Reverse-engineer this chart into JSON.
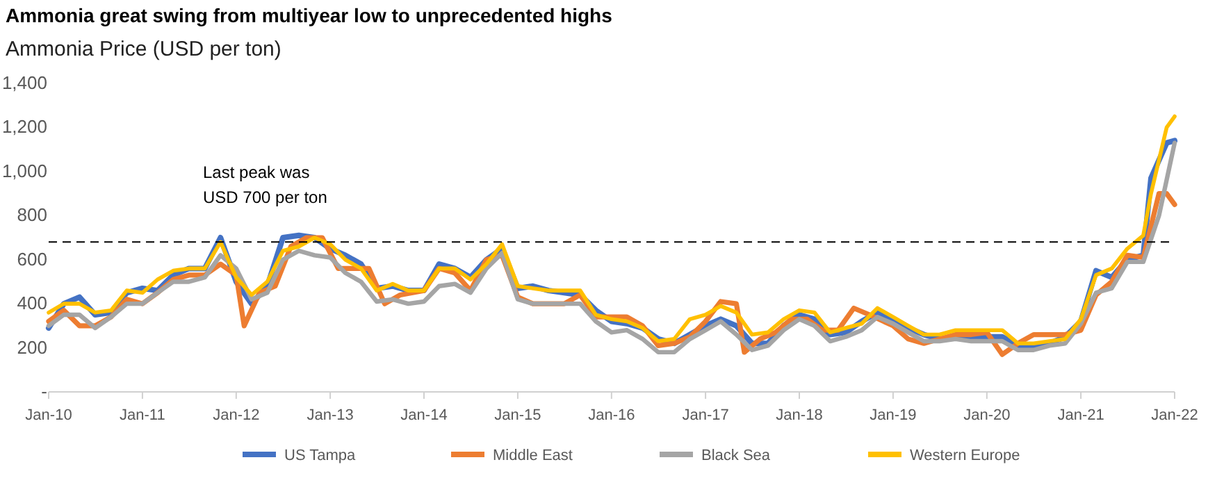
{
  "chart_data": {
    "type": "line",
    "title": "Ammonia great swing from multiyear low to unprecedented highs",
    "ylabel": "Ammonia Price (USD per ton)",
    "annotations": [
      "Last peak was\nUSD 700 per ton"
    ],
    "xlim": [
      "2010-01",
      "2022-01"
    ],
    "xticks": [
      {
        "value": "2010-01",
        "label": "Jan-10"
      },
      {
        "value": "2011-01",
        "label": "Jan-11"
      },
      {
        "value": "2012-01",
        "label": "Jan-12"
      },
      {
        "value": "2013-01",
        "label": "Jan-13"
      },
      {
        "value": "2014-01",
        "label": "Jan-14"
      },
      {
        "value": "2015-01",
        "label": "Jan-15"
      },
      {
        "value": "2016-01",
        "label": "Jan-16"
      },
      {
        "value": "2017-01",
        "label": "Jan-17"
      },
      {
        "value": "2018-01",
        "label": "Jan-18"
      },
      {
        "value": "2019-01",
        "label": "Jan-19"
      },
      {
        "value": "2020-01",
        "label": "Jan-20"
      },
      {
        "value": "2021-01",
        "label": "Jan-21"
      },
      {
        "value": "2022-01",
        "label": "Jan-22"
      }
    ],
    "ylim": [
      0,
      1400
    ],
    "yticks": [
      {
        "value": 0,
        "label": "-"
      },
      {
        "value": 200,
        "label": "200"
      },
      {
        "value": 400,
        "label": "400"
      },
      {
        "value": 600,
        "label": "600"
      },
      {
        "value": 800,
        "label": "800"
      },
      {
        "value": 1000,
        "label": "1,000"
      },
      {
        "value": 1200,
        "label": "1,200"
      },
      {
        "value": 1400,
        "label": "1,400"
      }
    ],
    "grid": false,
    "legend": "bottom",
    "marker": "none",
    "line_style": "solid",
    "ref_lines": [
      {
        "axis": "y",
        "value": 680,
        "color": "#000000",
        "line_style": "dashed"
      }
    ],
    "series": [
      {
        "name": "US Tampa",
        "color": "#4472c4",
        "x": [
          "2010-01",
          "2010-03",
          "2010-05",
          "2010-07",
          "2010-09",
          "2010-11",
          "2011-01",
          "2011-03",
          "2011-05",
          "2011-07",
          "2011-09",
          "2011-11",
          "2012-01",
          "2012-03",
          "2012-05",
          "2012-07",
          "2012-09",
          "2012-11",
          "2013-01",
          "2013-03",
          "2013-05",
          "2013-07",
          "2013-09",
          "2013-11",
          "2014-01",
          "2014-03",
          "2014-05",
          "2014-07",
          "2014-09",
          "2014-11",
          "2015-01",
          "2015-03",
          "2015-05",
          "2015-07",
          "2015-09",
          "2015-11",
          "2016-01",
          "2016-03",
          "2016-05",
          "2016-07",
          "2016-09",
          "2016-11",
          "2017-01",
          "2017-03",
          "2017-05",
          "2017-07",
          "2017-09",
          "2017-11",
          "2018-01",
          "2018-03",
          "2018-05",
          "2018-07",
          "2018-09",
          "2018-11",
          "2019-01",
          "2019-03",
          "2019-05",
          "2019-07",
          "2019-09",
          "2019-11",
          "2020-01",
          "2020-03",
          "2020-05",
          "2020-07",
          "2020-09",
          "2020-11",
          "2021-01",
          "2021-03",
          "2021-05",
          "2021-07",
          "2021-09",
          "2021-10",
          "2021-12",
          "2022-01"
        ],
        "values": [
          290,
          400,
          430,
          350,
          360,
          450,
          470,
          460,
          530,
          560,
          560,
          700,
          500,
          400,
          480,
          700,
          710,
          700,
          650,
          620,
          580,
          470,
          480,
          460,
          460,
          580,
          560,
          520,
          600,
          650,
          470,
          480,
          460,
          450,
          440,
          370,
          320,
          310,
          290,
          240,
          220,
          260,
          300,
          330,
          300,
          220,
          220,
          300,
          350,
          330,
          260,
          270,
          320,
          360,
          330,
          290,
          260,
          240,
          250,
          250,
          250,
          250,
          210,
          210,
          220,
          250,
          320,
          550,
          520,
          600,
          620,
          970,
          1130,
          1140
        ]
      },
      {
        "name": "Middle East",
        "color": "#ed7d31",
        "x": [
          "2010-01",
          "2010-03",
          "2010-05",
          "2010-07",
          "2010-09",
          "2010-11",
          "2011-01",
          "2011-03",
          "2011-05",
          "2011-07",
          "2011-09",
          "2011-11",
          "2012-01",
          "2012-02",
          "2012-04",
          "2012-06",
          "2012-08",
          "2012-10",
          "2012-12",
          "2013-02",
          "2013-04",
          "2013-06",
          "2013-08",
          "2013-10",
          "2014-01",
          "2014-03",
          "2014-05",
          "2014-07",
          "2014-09",
          "2014-11",
          "2015-01",
          "2015-03",
          "2015-05",
          "2015-07",
          "2015-09",
          "2015-11",
          "2016-01",
          "2016-03",
          "2016-05",
          "2016-07",
          "2016-09",
          "2016-11",
          "2017-01",
          "2017-03",
          "2017-05",
          "2017-06",
          "2017-08",
          "2017-10",
          "2017-12",
          "2018-02",
          "2018-04",
          "2018-06",
          "2018-08",
          "2018-10",
          "2019-01",
          "2019-03",
          "2019-05",
          "2019-07",
          "2019-09",
          "2019-11",
          "2020-01",
          "2020-03",
          "2020-05",
          "2020-07",
          "2020-09",
          "2020-11",
          "2021-01",
          "2021-03",
          "2021-05",
          "2021-07",
          "2021-09",
          "2021-11",
          "2021-12",
          "2022-01"
        ],
        "values": [
          320,
          370,
          300,
          300,
          340,
          420,
          400,
          450,
          510,
          530,
          530,
          580,
          530,
          300,
          450,
          480,
          660,
          700,
          700,
          560,
          560,
          560,
          400,
          440,
          460,
          560,
          540,
          460,
          600,
          620,
          430,
          400,
          400,
          400,
          440,
          340,
          340,
          340,
          300,
          210,
          220,
          250,
          320,
          410,
          400,
          180,
          240,
          270,
          330,
          330,
          280,
          280,
          380,
          350,
          300,
          240,
          220,
          240,
          260,
          260,
          270,
          170,
          220,
          260,
          260,
          260,
          280,
          440,
          500,
          620,
          610,
          900,
          900,
          850
        ]
      },
      {
        "name": "Black Sea",
        "color": "#a5a5a5",
        "x": [
          "2010-01",
          "2010-03",
          "2010-05",
          "2010-07",
          "2010-09",
          "2010-11",
          "2011-01",
          "2011-03",
          "2011-05",
          "2011-07",
          "2011-09",
          "2011-11",
          "2012-01",
          "2012-03",
          "2012-05",
          "2012-07",
          "2012-09",
          "2012-11",
          "2013-01",
          "2013-03",
          "2013-05",
          "2013-07",
          "2013-09",
          "2013-11",
          "2014-01",
          "2014-03",
          "2014-05",
          "2014-07",
          "2014-09",
          "2014-11",
          "2015-01",
          "2015-03",
          "2015-05",
          "2015-07",
          "2015-09",
          "2015-11",
          "2016-01",
          "2016-03",
          "2016-05",
          "2016-07",
          "2016-09",
          "2016-11",
          "2017-01",
          "2017-03",
          "2017-05",
          "2017-07",
          "2017-09",
          "2017-11",
          "2018-01",
          "2018-03",
          "2018-05",
          "2018-07",
          "2018-09",
          "2018-11",
          "2019-01",
          "2019-03",
          "2019-05",
          "2019-07",
          "2019-09",
          "2019-11",
          "2020-01",
          "2020-03",
          "2020-05",
          "2020-07",
          "2020-09",
          "2020-11",
          "2021-01",
          "2021-03",
          "2021-05",
          "2021-07",
          "2021-09",
          "2021-11",
          "2022-01"
        ],
        "values": [
          300,
          350,
          350,
          290,
          340,
          400,
          400,
          450,
          500,
          500,
          520,
          620,
          560,
          420,
          450,
          600,
          640,
          620,
          610,
          540,
          500,
          410,
          420,
          400,
          410,
          480,
          490,
          450,
          560,
          630,
          420,
          400,
          400,
          400,
          400,
          320,
          270,
          280,
          240,
          180,
          180,
          240,
          280,
          320,
          260,
          190,
          210,
          280,
          330,
          300,
          230,
          250,
          280,
          340,
          310,
          270,
          230,
          230,
          240,
          230,
          230,
          230,
          190,
          190,
          210,
          220,
          310,
          450,
          470,
          590,
          590,
          800,
          1130
        ]
      },
      {
        "name": "Western Europe",
        "color": "#ffc000",
        "x": [
          "2010-01",
          "2010-03",
          "2010-05",
          "2010-07",
          "2010-09",
          "2010-11",
          "2011-01",
          "2011-03",
          "2011-05",
          "2011-07",
          "2011-09",
          "2011-11",
          "2012-01",
          "2012-03",
          "2012-05",
          "2012-07",
          "2012-09",
          "2012-11",
          "2013-01",
          "2013-03",
          "2013-05",
          "2013-07",
          "2013-09",
          "2013-11",
          "2014-01",
          "2014-03",
          "2014-05",
          "2014-07",
          "2014-09",
          "2014-11",
          "2015-01",
          "2015-03",
          "2015-05",
          "2015-07",
          "2015-09",
          "2015-11",
          "2016-01",
          "2016-03",
          "2016-05",
          "2016-07",
          "2016-09",
          "2016-11",
          "2017-01",
          "2017-03",
          "2017-05",
          "2017-07",
          "2017-09",
          "2017-11",
          "2018-01",
          "2018-03",
          "2018-05",
          "2018-07",
          "2018-09",
          "2018-11",
          "2019-01",
          "2019-03",
          "2019-05",
          "2019-07",
          "2019-09",
          "2019-11",
          "2020-01",
          "2020-03",
          "2020-05",
          "2020-07",
          "2020-09",
          "2020-11",
          "2021-01",
          "2021-03",
          "2021-05",
          "2021-07",
          "2021-09",
          "2021-10",
          "2021-12",
          "2022-01"
        ],
        "values": [
          360,
          400,
          400,
          360,
          370,
          460,
          450,
          510,
          550,
          560,
          560,
          680,
          520,
          440,
          500,
          640,
          660,
          700,
          670,
          600,
          560,
          460,
          490,
          460,
          460,
          560,
          560,
          510,
          580,
          670,
          480,
          470,
          460,
          460,
          460,
          350,
          330,
          320,
          290,
          230,
          240,
          330,
          350,
          390,
          360,
          260,
          270,
          330,
          370,
          360,
          270,
          290,
          310,
          380,
          340,
          300,
          260,
          260,
          280,
          280,
          280,
          280,
          220,
          220,
          230,
          240,
          330,
          530,
          560,
          650,
          710,
          900,
          1200,
          1250
        ]
      }
    ]
  }
}
